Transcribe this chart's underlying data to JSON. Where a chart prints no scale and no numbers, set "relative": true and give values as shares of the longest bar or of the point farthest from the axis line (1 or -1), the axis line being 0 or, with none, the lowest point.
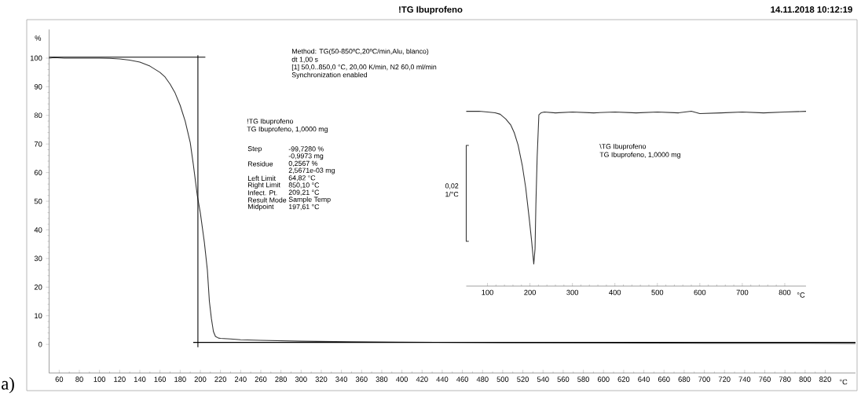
{
  "chart_data": [
    {
      "type": "line",
      "title": "!TG Ibuprofeno",
      "subtitle": "14.11.2018 10:12:19",
      "xlabel": "°C",
      "ylabel": "%",
      "xlim": [
        50,
        850
      ],
      "ylim": [
        -10,
        110
      ],
      "xticks": [
        60,
        80,
        100,
        120,
        140,
        160,
        180,
        200,
        220,
        240,
        260,
        280,
        300,
        320,
        340,
        360,
        380,
        400,
        420,
        440,
        460,
        480,
        500,
        520,
        540,
        560,
        580,
        600,
        620,
        640,
        660,
        680,
        700,
        720,
        740,
        760,
        780,
        800,
        820
      ],
      "yticks": [
        0,
        10,
        20,
        30,
        40,
        50,
        60,
        70,
        80,
        90,
        100
      ],
      "series": [
        {
          "color": "#333333",
          "x": [
            50,
            55,
            60,
            65,
            80,
            100,
            110,
            120,
            130,
            140,
            150,
            160,
            165,
            170,
            175,
            180,
            185,
            190,
            193,
            197,
            200,
            204,
            207,
            209,
            211,
            213,
            215,
            218,
            220,
            230,
            240,
            260,
            300,
            350,
            400,
            500,
            600,
            700,
            800,
            850
          ],
          "values": [
            100.0,
            100.2,
            100.1,
            100.0,
            100.0,
            100.0,
            99.9,
            99.7,
            99.3,
            98.6,
            97.2,
            95.0,
            93.4,
            90.9,
            87.8,
            83.5,
            78.0,
            70.5,
            63,
            52,
            46,
            35.7,
            26,
            15,
            9,
            4.5,
            2.8,
            2.2,
            2.1,
            1.9,
            1.6,
            1.4,
            1.1,
            0.9,
            0.8,
            0.6,
            0.5,
            0.4,
            0.4,
            0.3
          ]
        },
        {
          "color": "#000000",
          "x": [
            50,
            205
          ],
          "values": [
            100.3,
            100.3
          ]
        },
        {
          "color": "#000000",
          "x": [
            197.61,
            197.61
          ],
          "values": [
            101,
            -1
          ]
        },
        {
          "color": "#000000",
          "x": [
            193,
            850
          ],
          "values": [
            0.7,
            0.7
          ]
        }
      ],
      "annotations": [
        "Method: TG(50-850ºC,20ºC/min,Alu, blanco)",
        "dt 1,00 s",
        "[1] 50,0..850,0 °C, 20,00 K/min,  N2 60,0 ml/min",
        "Synchronization enabled",
        "!TG Ibuprofeno",
        "TG Ibuprofeno, 1,0000 mg",
        "Step",
        "-99,7280 %",
        "-0,9973 mg",
        "Residue",
        "0,2567 %",
        "2,5671e-03 mg",
        "Left Limit",
        "64,82 °C",
        "Right Limit",
        "850,10 °C",
        "Infect. Pt.",
        "209,21 °C",
        "Result Mode",
        "Sample Temp",
        "Midpoint",
        "197,61 °C",
        "a)"
      ]
    },
    {
      "type": "line",
      "relative": true,
      "xlabel": "°C",
      "xlim": [
        50,
        850
      ],
      "xticks": [
        100,
        200,
        300,
        400,
        500,
        600,
        700,
        800
      ],
      "tick_labels": "x",
      "x": [
        50,
        80,
        100,
        118,
        130,
        143,
        155,
        163,
        172,
        182,
        190,
        198,
        204,
        209,
        212,
        214,
        217,
        221,
        226,
        234,
        260,
        300,
        350,
        400,
        450,
        500,
        550,
        580,
        600,
        650,
        700,
        750,
        800,
        850
      ],
      "series": [
        {
          "color": "#333333",
          "values": [
            1.0,
            1.0,
            0.996,
            0.991,
            0.983,
            0.956,
            0.921,
            0.878,
            0.808,
            0.69,
            0.563,
            0.393,
            0.257,
            0.126,
            0.213,
            0.467,
            0.738,
            0.98,
            0.991,
            0.996,
            0.991,
            0.996,
            0.991,
            0.996,
            0.991,
            0.996,
            0.991,
            1.0,
            0.987,
            0.991,
            0.996,
            0.991,
            0.996,
            1.0
          ]
        },
        {
          "color": "#333333",
          "x": [
            56,
            50,
            50,
            56
          ],
          "values": [
            0.805,
            0.805,
            0.256,
            0.256
          ]
        }
      ],
      "annotations": [
        "\\TG Ibuprofeno",
        "TG Ibuprofeno, 1,0000 mg",
        "0,02",
        "1/°C"
      ]
    }
  ]
}
